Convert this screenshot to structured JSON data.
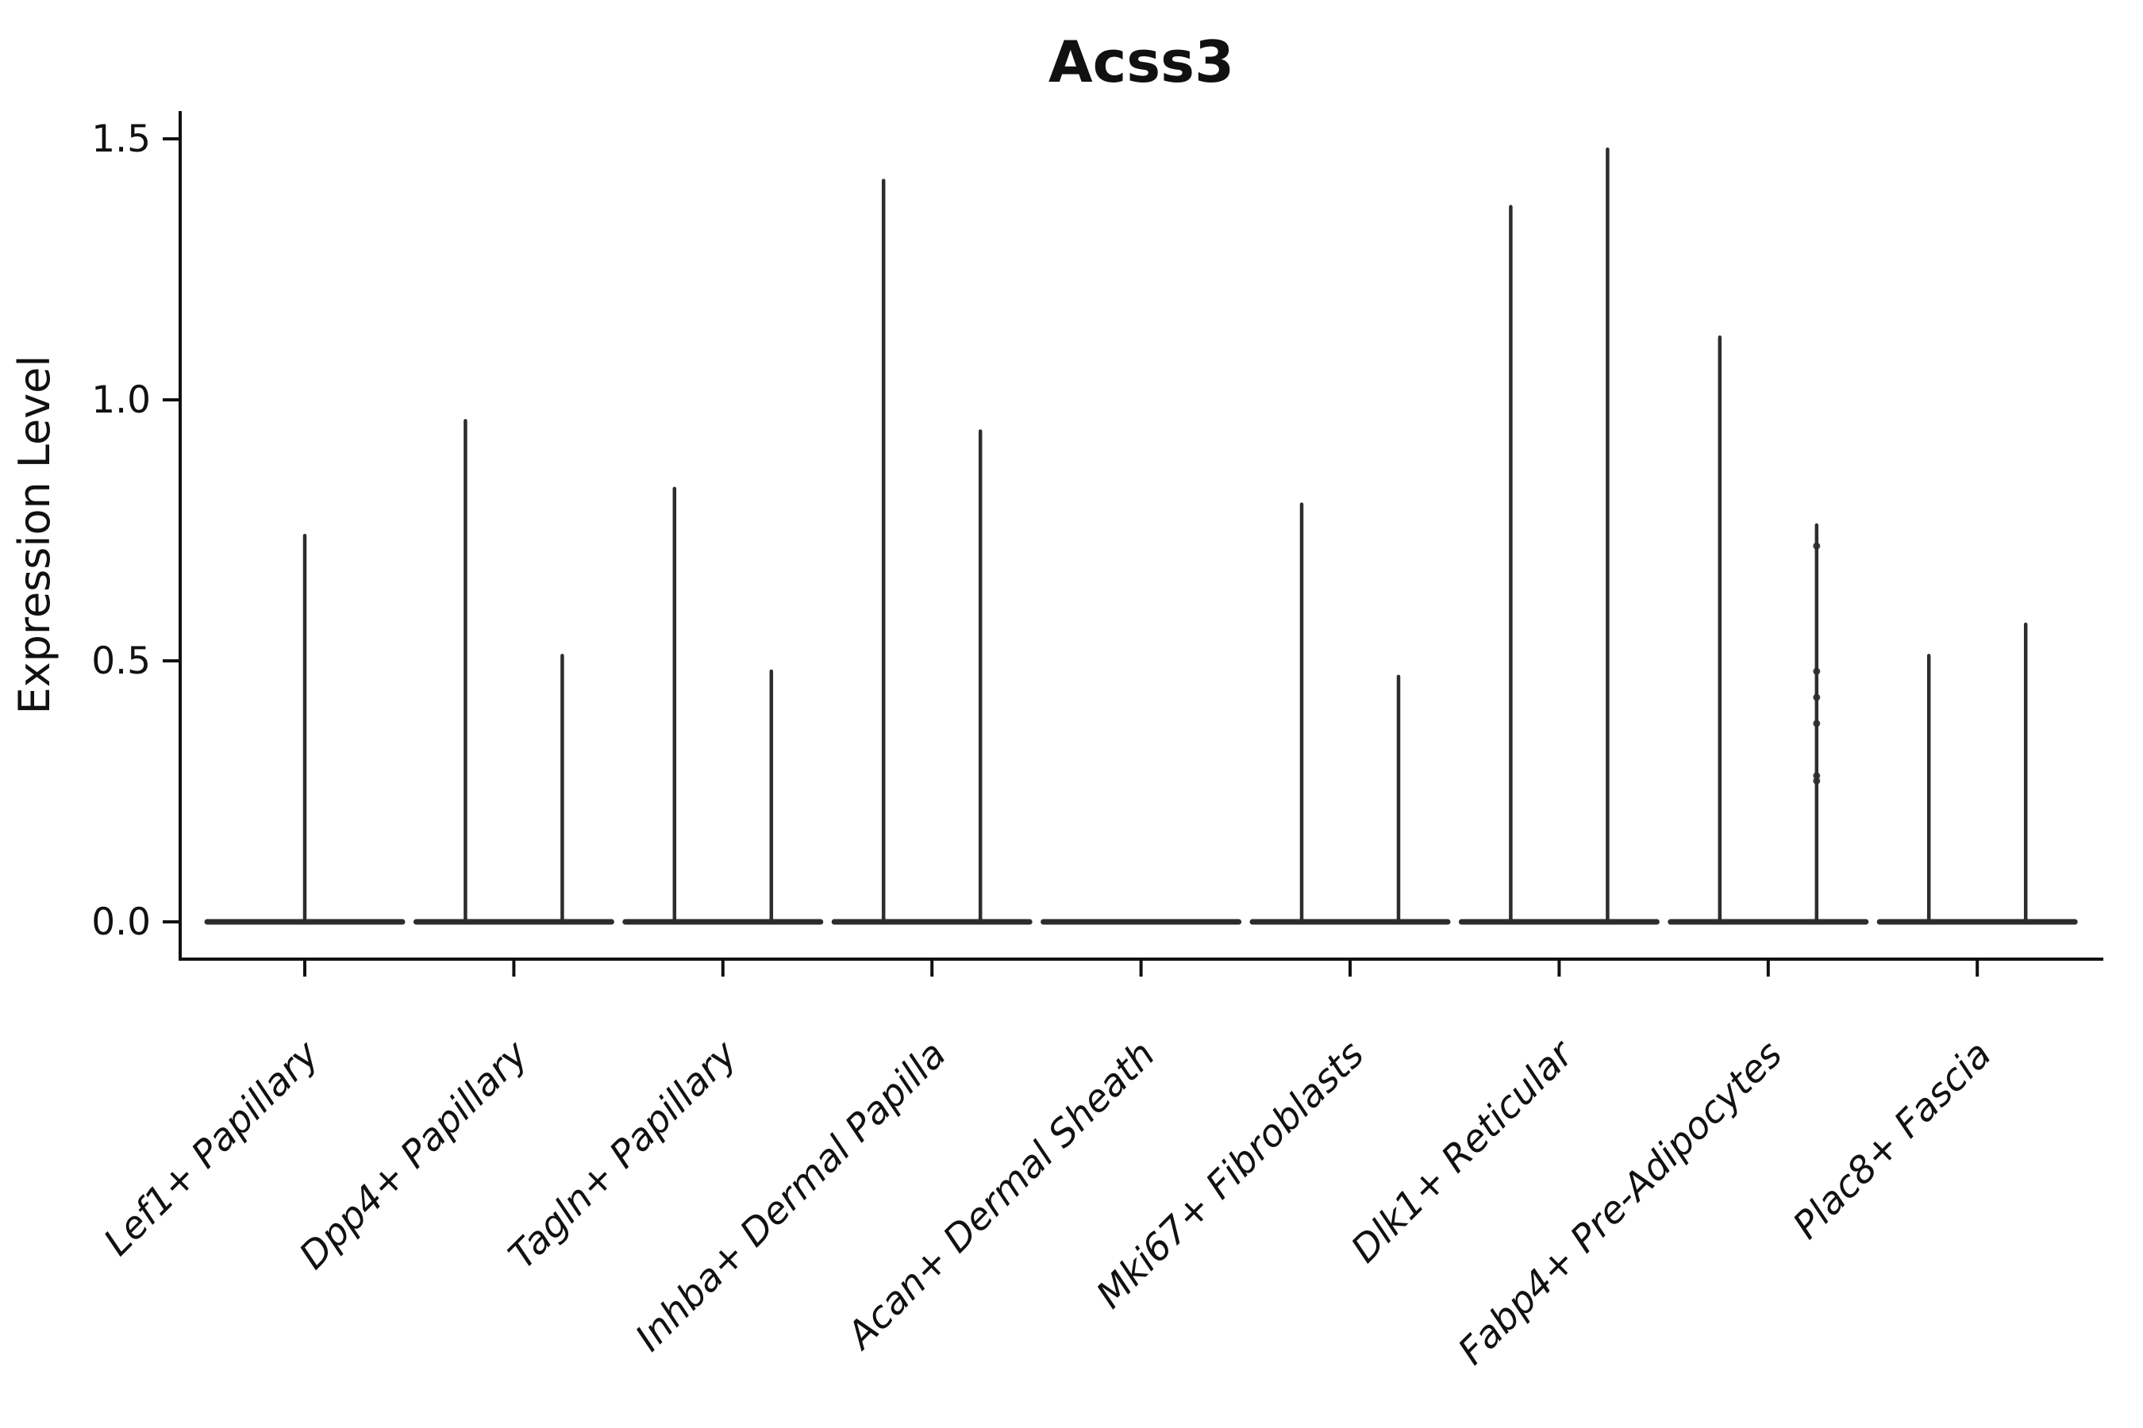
{
  "chart_data": {
    "type": "violin",
    "title": "Acss3",
    "xlabel": "",
    "ylabel": "Expression Level",
    "y_ticks": [
      "0.0",
      "0.5",
      "1.0",
      "1.5"
    ],
    "ylim": [
      -0.07,
      1.55
    ],
    "grid": false,
    "legend": "none",
    "ink_color": "#111111",
    "violin_color": "#2d2d2d",
    "baseline_value": 0.0,
    "categories": [
      {
        "label": "Lef1+ Papillary",
        "violins": [
          {
            "position": "center",
            "max": 0.74
          }
        ]
      },
      {
        "label": "Dpp4+ Papillary",
        "violins": [
          {
            "position": "left",
            "max": 0.96
          },
          {
            "position": "right",
            "max": 0.51
          }
        ]
      },
      {
        "label": "Tagln+ Papillary",
        "violins": [
          {
            "position": "left",
            "max": 0.83
          },
          {
            "position": "right",
            "max": 0.48
          }
        ]
      },
      {
        "label": "Inhba+ Dermal Papilla",
        "violins": [
          {
            "position": "left",
            "max": 1.42
          },
          {
            "position": "right",
            "max": 0.94
          }
        ]
      },
      {
        "label": "Acan+ Dermal Sheath",
        "violins": []
      },
      {
        "label": "Mki67+ Fibroblasts",
        "violins": [
          {
            "position": "left",
            "max": 0.8
          },
          {
            "position": "right",
            "max": 0.47
          }
        ]
      },
      {
        "label": "Dlk1+ Reticular",
        "violins": [
          {
            "position": "left",
            "max": 1.37
          },
          {
            "position": "right",
            "max": 1.48
          }
        ]
      },
      {
        "label": "Fabp4+ Pre-Adipocytes",
        "violins": [
          {
            "position": "left",
            "max": 1.12
          },
          {
            "position": "right",
            "max": 0.76,
            "dots": [
              0.72,
              0.48,
              0.43,
              0.38,
              0.28,
              0.27
            ]
          }
        ]
      },
      {
        "label": "Plac8+ Fascia",
        "violins": [
          {
            "position": "left",
            "max": 0.51
          },
          {
            "position": "right",
            "max": 0.57
          }
        ]
      }
    ]
  }
}
